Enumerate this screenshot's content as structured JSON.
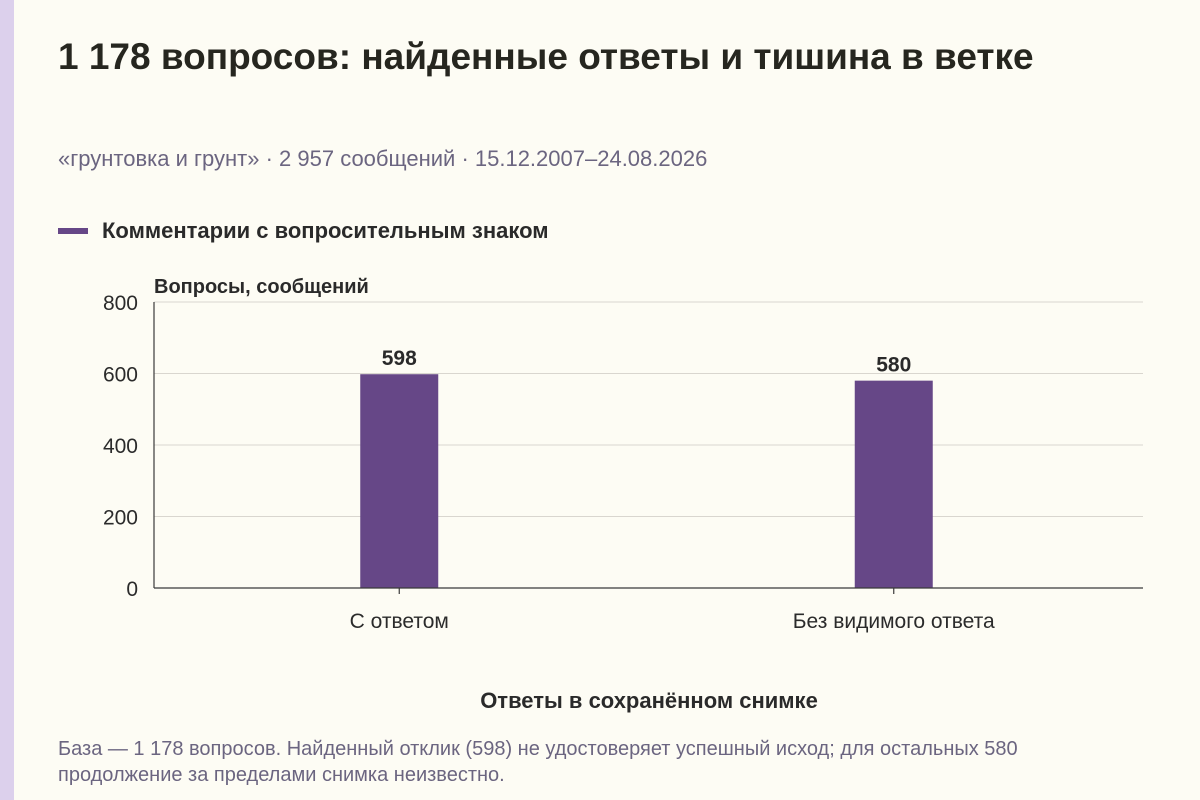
{
  "header": {
    "title": "1 178 вопросов: найденные ответы и тишина в ветке",
    "subtitle": "«грунтовка и грунт» · 2 957 сообщений · 15.12.2007–24.08.2026"
  },
  "legend": {
    "label": "Комментарии с вопросительным знаком"
  },
  "footnote": "База — 1 178 вопросов. Найденный отклик (598) не удостоверяет успешный исход; для остальных 580 продолжение за пределами снимка неизвестно.",
  "colors": {
    "bar": "#664787",
    "accent": "#dcd0ec",
    "grid": "#d9d6cf",
    "axis": "#3a3a3a"
  },
  "chart_data": {
    "type": "bar",
    "title": "1 178 вопросов: найденные ответы и тишина в ветке",
    "xlabel": "Ответы в сохранённом снимке",
    "ylabel": "Вопросы, сообщений",
    "categories": [
      "С ответом",
      "Без видимого ответа"
    ],
    "series": [
      {
        "name": "Комментарии с вопросительным знаком",
        "values": [
          598,
          580
        ]
      }
    ],
    "ylim": [
      0,
      800
    ],
    "yticks": [
      0,
      200,
      400,
      600,
      800
    ],
    "grid": true,
    "legend_position": "top-left"
  }
}
